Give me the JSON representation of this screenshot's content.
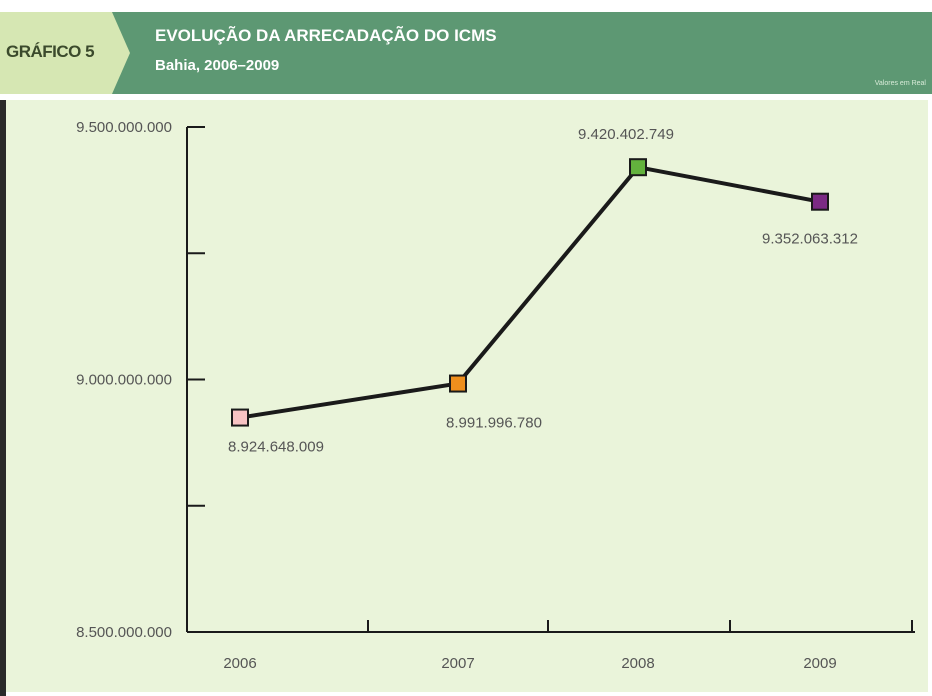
{
  "header": {
    "badge": "GRÁFICO 5",
    "title": "EVOLUÇÃO DA ARRECADAÇÃO DO ICMS",
    "subtitle": "Bahia, 2006–2009",
    "units_note": "Valores em Real"
  },
  "colors": {
    "header_bg": "#5d9873",
    "badge_bg": "#d6e7b3",
    "plot_bg": "#eaf4da",
    "line": "#1a1a1a"
  },
  "chart_data": {
    "type": "line",
    "title": "EVOLUÇÃO DA ARRECADAÇÃO DO ICMS",
    "subtitle": "Bahia, 2006–2009",
    "categories": [
      "2006",
      "2007",
      "2008",
      "2009"
    ],
    "series": [
      {
        "values": [
          8924648009,
          8991996780,
          9420402749,
          9352063312
        ],
        "value_labels": [
          "8.924.648.009",
          "8.991.996.780",
          "9.420.402.749",
          "9.352.063.312"
        ],
        "marker_colors": [
          "#f7c3c3",
          "#ef8f1d",
          "#63b23d",
          "#7b2b84"
        ]
      }
    ],
    "ylim": [
      8500000000,
      9500000000
    ],
    "y_ticks": [
      8500000000,
      8750000000,
      9000000000,
      9250000000,
      9500000000
    ],
    "y_tick_labels": [
      "8.500.000.000",
      "",
      "9.000.000.000",
      "",
      "9.500.000.000"
    ],
    "grid": false,
    "xlabel": "",
    "ylabel": ""
  }
}
